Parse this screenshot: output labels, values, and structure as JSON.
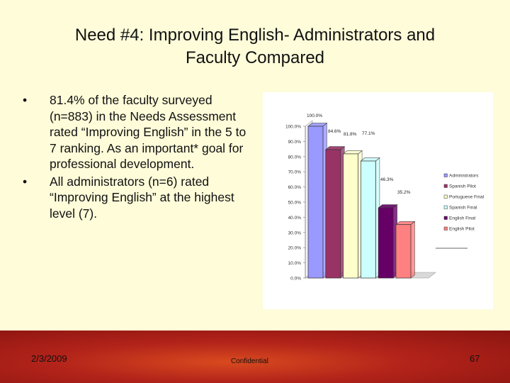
{
  "slide": {
    "title_line1": "Need #4: Improving English- Administrators and",
    "title_line2": "Faculty Compared",
    "bullets": [
      "81.4% of the faculty surveyed (n=883) in the Needs Assessment rated “Improving English” in the 5 to 7 ranking. As an important* goal for professional development.",
      "All administrators (n=6) rated “Improving English” at the highest level (7)."
    ],
    "bullet_glyph": "•"
  },
  "footer": {
    "date": "2/3/2009",
    "confidential": "Confidential",
    "page_number": "67"
  },
  "chart_data": {
    "type": "bar",
    "categories": [
      "Administrators",
      "Spanish Pilot",
      "Portuguese Final",
      "Spanish Final",
      "English Final",
      "English Pilot"
    ],
    "values": [
      100.0,
      84.6,
      81.8,
      77.1,
      46.3,
      35.2
    ],
    "data_labels": [
      "100.0%",
      "84.6%",
      "81.8%",
      "77.1%",
      "46.3%",
      "35.2%"
    ],
    "ylim": [
      0,
      100
    ],
    "yticks": [
      "0.0%",
      "10.0%",
      "20.0%",
      "30.0%",
      "40.0%",
      "50.0%",
      "60.0%",
      "70.0%",
      "80.0%",
      "90.0%",
      "100.0%"
    ],
    "legend_position": "right",
    "colors": [
      "#9999ff",
      "#993366",
      "#ffffcc",
      "#ccffff",
      "#660066",
      "#ff8080"
    ]
  }
}
